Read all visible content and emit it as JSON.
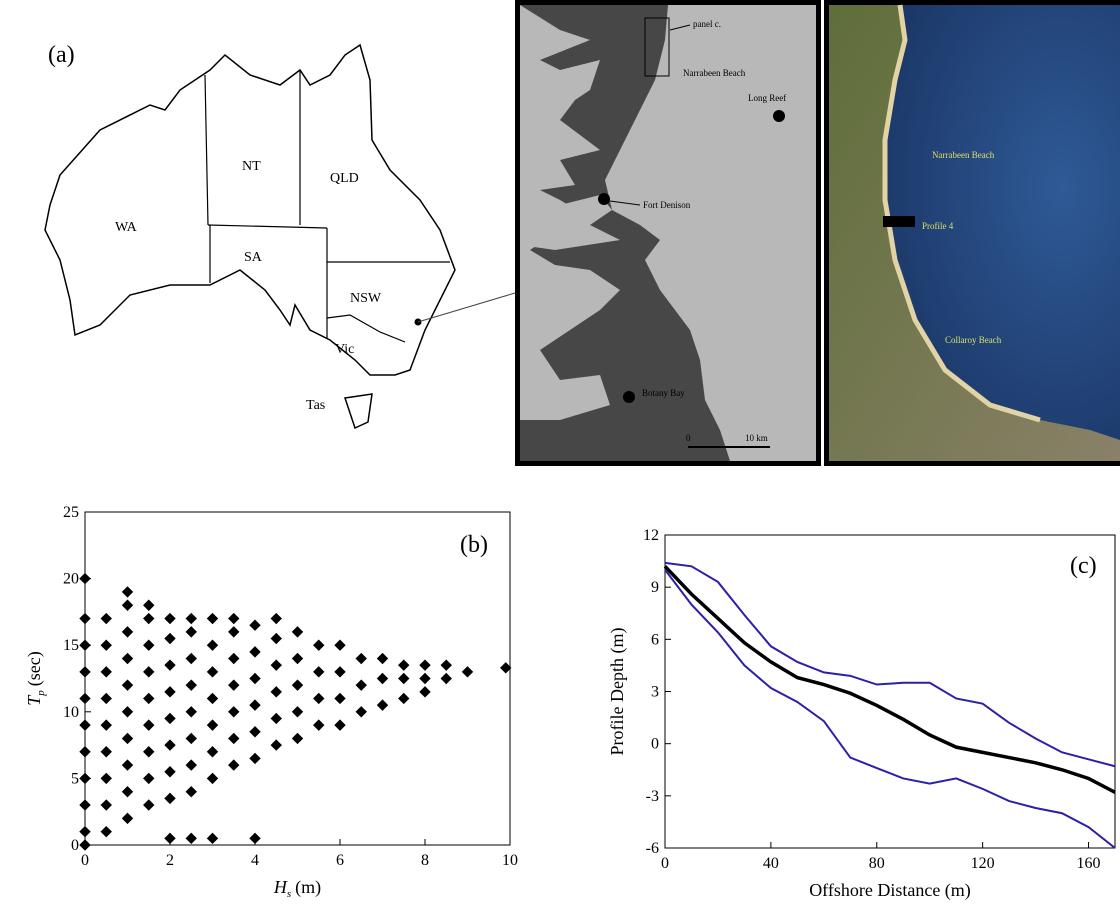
{
  "figure": {
    "map_panel_label": "(a)",
    "states": [
      "WA",
      "NT",
      "QLD",
      "SA",
      "NSW",
      "Vic",
      "Tas"
    ],
    "sydney_labels": {
      "inset": "panel c.",
      "beach": "Narrabeen Beach",
      "reef": "Long Reef",
      "gauge": "Fort Denison",
      "bay": "Botany Bay",
      "scale_start": "0",
      "scale_end": "10 km"
    },
    "photo_labels": {
      "beach": "Narrabeen Beach",
      "profile": "Profile 4",
      "south_beach": "Collaroy Beach"
    }
  },
  "chart_data": [
    {
      "type": "scatter",
      "panel_label": "(b)",
      "x_label": {
        "symbol": "H",
        "subscript": "s",
        "unit": "(m)"
      },
      "y_label": {
        "symbol": "T",
        "subscript": "p",
        "unit": "(sec)"
      },
      "xlim": [
        0,
        10
      ],
      "xticks": [
        0,
        2,
        4,
        6,
        8,
        10
      ],
      "ylim": [
        0,
        25
      ],
      "yticks": [
        0,
        5,
        10,
        15,
        20,
        25
      ],
      "color": "#000000",
      "x": [
        0,
        0,
        0,
        0,
        0,
        0,
        0,
        0,
        0,
        0,
        0,
        0.5,
        0.5,
        0.5,
        0.5,
        0.5,
        0.5,
        0.5,
        0.5,
        0.5,
        1,
        1,
        1,
        1,
        1,
        1,
        1,
        1,
        1,
        1,
        1.5,
        1.5,
        1.5,
        1.5,
        1.5,
        1.5,
        1.5,
        1.5,
        1.5,
        2,
        2,
        2,
        2,
        2,
        2,
        2,
        2,
        2,
        2.5,
        2.5,
        2.5,
        2.5,
        2.5,
        2.5,
        2.5,
        2.5,
        2.5,
        3,
        3,
        3,
        3,
        3,
        3,
        3,
        3,
        3.5,
        3.5,
        3.5,
        3.5,
        3.5,
        3.5,
        3.5,
        4,
        4,
        4,
        4,
        4,
        4,
        4,
        4.5,
        4.5,
        4.5,
        4.5,
        4.5,
        4.5,
        5,
        5,
        5,
        5,
        5,
        5.5,
        5.5,
        5.5,
        5.5,
        6,
        6,
        6,
        6,
        6.5,
        6.5,
        6.5,
        7,
        7,
        7,
        7.5,
        7.5,
        7.5,
        8,
        8,
        8,
        8.5,
        8.5,
        9,
        9.9
      ],
      "values": [
        0,
        1,
        3,
        5,
        7,
        9,
        11,
        13,
        15,
        17,
        20,
        1,
        3,
        5,
        7,
        9,
        11,
        13,
        15,
        17,
        2,
        4,
        6,
        8,
        10,
        12,
        14,
        16,
        18,
        19,
        3,
        5,
        7,
        9,
        11,
        13,
        15,
        17,
        18,
        3.5,
        5.5,
        7.5,
        9.5,
        11.5,
        13.5,
        15.5,
        17,
        0.5,
        4,
        6,
        8,
        10,
        12,
        14,
        16,
        17,
        0.5,
        5,
        7,
        9,
        11,
        13,
        15,
        17,
        0.5,
        6,
        8,
        10,
        12,
        14,
        16,
        17,
        6.5,
        8.5,
        10.5,
        12.5,
        14.5,
        16.5,
        0.5,
        7.5,
        9.5,
        11.5,
        13.5,
        15.5,
        17,
        8,
        10,
        12,
        14,
        16,
        9,
        11,
        13,
        15,
        9,
        11,
        13,
        15,
        10,
        12,
        14,
        10.5,
        12.5,
        14,
        11,
        12.5,
        13.5,
        11.5,
        12.5,
        13.5,
        12.5,
        13.5,
        13,
        13.3
      ]
    },
    {
      "type": "line",
      "panel_label": "(c)",
      "x_label": "Offshore Distance (m)",
      "y_label": "Profile Depth (m)",
      "xlim": [
        0,
        170
      ],
      "xticks": [
        0,
        40,
        80,
        120,
        160
      ],
      "ylim": [
        -6,
        12
      ],
      "yticks": [
        -6,
        -3,
        0,
        3,
        6,
        9,
        12
      ],
      "x": [
        0,
        10,
        20,
        30,
        40,
        50,
        60,
        70,
        80,
        90,
        100,
        110,
        120,
        130,
        140,
        150,
        160,
        170
      ],
      "series": [
        {
          "color": "#000000",
          "values": [
            10.2,
            8.6,
            7.2,
            5.8,
            4.7,
            3.8,
            3.4,
            2.9,
            2.2,
            1.4,
            0.5,
            -0.2,
            -0.5,
            -0.8,
            -1.1,
            -1.5,
            -2.0,
            -2.8
          ]
        },
        {
          "color": "#2c1fa8",
          "values": [
            10.4,
            10.2,
            9.3,
            7.4,
            5.6,
            4.7,
            4.1,
            3.9,
            3.4,
            3.5,
            3.5,
            2.6,
            2.3,
            1.2,
            0.3,
            -0.5,
            -0.9,
            -1.3
          ]
        },
        {
          "color": "#2c1fa8",
          "values": [
            10.0,
            8.0,
            6.4,
            4.5,
            3.2,
            2.4,
            1.3,
            -0.8,
            -1.4,
            -2.0,
            -2.3,
            -2.0,
            -2.6,
            -3.3,
            -3.7,
            -4.0,
            -4.8,
            -6.0
          ]
        }
      ]
    }
  ]
}
